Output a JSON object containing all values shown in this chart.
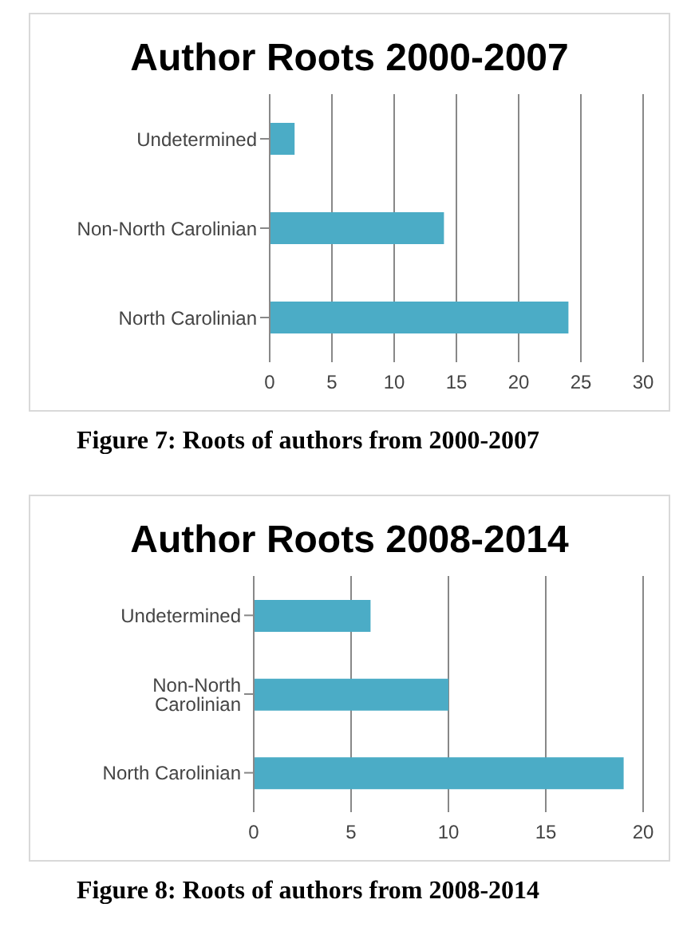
{
  "chart_data": [
    {
      "type": "bar",
      "orientation": "horizontal",
      "title": "Author Roots 2000-2007",
      "categories": [
        "Undetermined",
        "Non-North Carolinian",
        "North Carolinian"
      ],
      "values": [
        2,
        14,
        24
      ],
      "color": "#4bacc6",
      "xlim": [
        0,
        30
      ],
      "xticks": [
        0,
        5,
        10,
        15,
        20,
        25,
        30
      ],
      "grid": "x",
      "legend": false,
      "annotations": [
        "Figure 7: Roots of authors from 2000-2007"
      ]
    },
    {
      "type": "bar",
      "orientation": "horizontal",
      "title": "Author Roots 2008-2014",
      "categories": [
        "Undetermined",
        "Non-North Carolinian",
        "North Carolinian"
      ],
      "values": [
        6,
        10,
        19
      ],
      "color": "#4bacc6",
      "xlim": [
        0,
        20
      ],
      "xticks": [
        0,
        5,
        10,
        15,
        20
      ],
      "grid": "x",
      "legend": false,
      "annotations": [
        "Figure 8: Roots of authors from 2008-2014"
      ]
    }
  ]
}
